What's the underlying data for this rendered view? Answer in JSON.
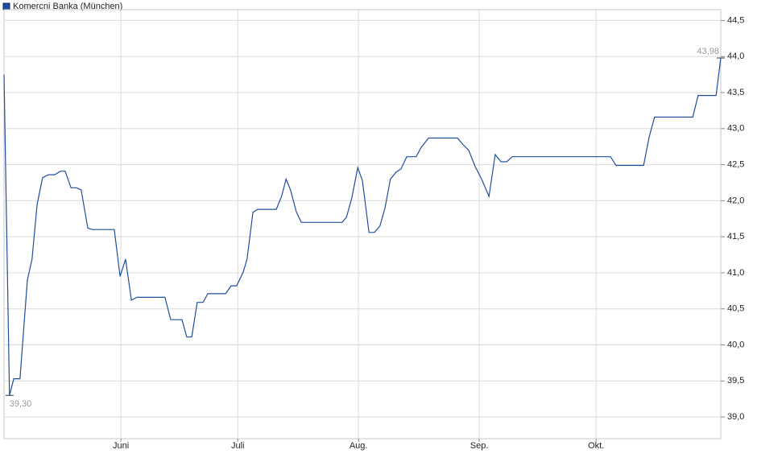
{
  "chart_data": {
    "type": "line",
    "title": "Komercni Banka (München)",
    "color": "#1f4e9c",
    "grid": true,
    "xlim": [
      0,
      184
    ],
    "xticks": [
      {
        "value": 30,
        "label": "Juni"
      },
      {
        "value": 60,
        "label": "Juli"
      },
      {
        "value": 91,
        "label": "Aug."
      },
      {
        "value": 122,
        "label": "Sep."
      },
      {
        "value": 152,
        "label": "Okt."
      }
    ],
    "ylim": [
      38.7,
      44.65
    ],
    "yticks": [
      {
        "value": 39.0,
        "label": "39,0"
      },
      {
        "value": 39.5,
        "label": "39,5"
      },
      {
        "value": 40.0,
        "label": "40,0"
      },
      {
        "value": 40.5,
        "label": "40,5"
      },
      {
        "value": 41.0,
        "label": "41,0"
      },
      {
        "value": 41.5,
        "label": "41,5"
      },
      {
        "value": 42.0,
        "label": "42,0"
      },
      {
        "value": 42.5,
        "label": "42,5"
      },
      {
        "value": 43.0,
        "label": "43,0"
      },
      {
        "value": 43.5,
        "label": "43,5"
      },
      {
        "value": 44.0,
        "label": "44,0"
      },
      {
        "value": 44.5,
        "label": "44,5"
      }
    ],
    "x": [
      0,
      1.4,
      2.5,
      4.1,
      6,
      7.2,
      8.5,
      9.9,
      11.4,
      13,
      14.5,
      15.7,
      17.2,
      18.6,
      19.8,
      21.5,
      22.7,
      28.3,
      29.8,
      31.2,
      32.7,
      34.1,
      41.3,
      42.8,
      45.7,
      46.9,
      48.2,
      49.6,
      51.1,
      52.3,
      56.9,
      58.3,
      59.7,
      61.4,
      62.4,
      63.9,
      65.1,
      69.9,
      71.3,
      72.4,
      73.6,
      75,
      76.3,
      86.8,
      87.9,
      89.3,
      90.8,
      92,
      93.7,
      95.1,
      96.5,
      97.8,
      99.2,
      100.7,
      101.9,
      103.4,
      105.8,
      107.1,
      109,
      116.4,
      117.8,
      119.3,
      120.9,
      122.6,
      124.5,
      126.1,
      127.6,
      129,
      130.5,
      155.7,
      157.1,
      164.2,
      165.6,
      167,
      176.8,
      178.2,
      182.8,
      184
    ],
    "values": [
      43.75,
      39.3,
      39.53,
      39.53,
      40.9,
      41.19,
      41.95,
      42.32,
      42.36,
      42.36,
      42.41,
      42.41,
      42.18,
      42.18,
      42.15,
      41.62,
      41.6,
      41.6,
      40.95,
      41.19,
      40.62,
      40.66,
      40.66,
      40.35,
      40.35,
      40.11,
      40.11,
      40.59,
      40.59,
      40.71,
      40.71,
      40.82,
      40.82,
      41.01,
      41.19,
      41.84,
      41.88,
      41.88,
      42.07,
      42.3,
      42.14,
      41.85,
      41.7,
      41.7,
      41.77,
      42.04,
      42.46,
      42.28,
      41.56,
      41.56,
      41.65,
      41.9,
      42.3,
      42.4,
      42.44,
      42.61,
      42.61,
      42.74,
      42.87,
      42.87,
      42.78,
      42.7,
      42.48,
      42.3,
      42.06,
      42.64,
      42.54,
      42.54,
      42.61,
      42.61,
      42.49,
      42.49,
      42.88,
      43.16,
      43.16,
      43.46,
      43.46,
      43.98
    ],
    "annotations": [
      {
        "x": 1.4,
        "value": 39.3,
        "label": "39,30"
      },
      {
        "x": 184,
        "value": 43.98,
        "label": "43,98"
      }
    ]
  }
}
